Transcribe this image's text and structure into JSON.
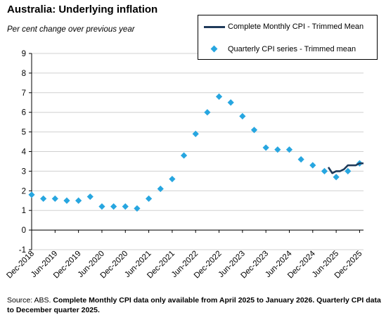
{
  "title": "Australia: Underlying inflation",
  "subtitle": "Per cent change over previous year",
  "legend": {
    "monthly": "Complete Monthly CPI - Trimmed Mean",
    "quarterly": "Quarterly CPI series - Trimmed mean"
  },
  "source": {
    "prefix": "Source: ABS.",
    "note": "Complete Monthly CPI data only available from April 2025 to January 2026. Quarterly CPI data to December quarter 2025."
  },
  "colors": {
    "monthly": "#1f3a5a",
    "quarterly": "#27a6e0"
  },
  "chart_data": {
    "type": "line",
    "ylim": [
      -1,
      9
    ],
    "yticks": [
      "-1",
      "0",
      "1",
      "2",
      "3",
      "4",
      "5",
      "6",
      "7",
      "8",
      "9"
    ],
    "xticks": [
      "Dec-2018",
      "Jun-2019",
      "Dec-2019",
      "Jun-2020",
      "Dec-2020",
      "Jun-2021",
      "Dec-2021",
      "Jun-2022",
      "Dec-2022",
      "Jun-2023",
      "Dec-2023",
      "Jun-2024",
      "Dec-2024",
      "Jun-2025",
      "Dec-2025"
    ],
    "xlim": [
      "Dec-2018",
      "Jan-2026"
    ],
    "series": [
      {
        "name": "Quarterly CPI series - Trimmed mean",
        "kind": "scatter",
        "x": [
          "Dec-2018",
          "Mar-2019",
          "Jun-2019",
          "Sep-2019",
          "Dec-2019",
          "Mar-2020",
          "Jun-2020",
          "Sep-2020",
          "Dec-2020",
          "Mar-2021",
          "Jun-2021",
          "Sep-2021",
          "Dec-2021",
          "Mar-2022",
          "Jun-2022",
          "Sep-2022",
          "Dec-2022",
          "Mar-2023",
          "Jun-2023",
          "Sep-2023",
          "Dec-2023",
          "Mar-2024",
          "Jun-2024",
          "Sep-2024",
          "Dec-2024",
          "Mar-2025",
          "Jun-2025",
          "Sep-2025",
          "Dec-2025"
        ],
        "y": [
          1.8,
          1.6,
          1.6,
          1.5,
          1.5,
          1.7,
          1.2,
          1.2,
          1.2,
          1.1,
          1.6,
          2.1,
          2.6,
          3.8,
          4.9,
          6.0,
          6.8,
          6.5,
          5.8,
          5.1,
          4.2,
          4.1,
          4.1,
          3.6,
          3.3,
          3.0,
          2.7,
          3.0,
          3.4
        ]
      },
      {
        "name": "Complete Monthly CPI - Trimmed Mean",
        "kind": "line",
        "x": [
          "Apr-2025",
          "May-2025",
          "Jun-2025",
          "Jul-2025",
          "Aug-2025",
          "Sep-2025",
          "Oct-2025",
          "Nov-2025",
          "Dec-2025",
          "Jan-2026"
        ],
        "y": [
          3.2,
          2.9,
          3.0,
          3.0,
          3.1,
          3.3,
          3.3,
          3.3,
          3.4,
          3.4
        ]
      }
    ]
  }
}
